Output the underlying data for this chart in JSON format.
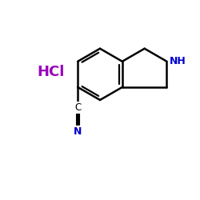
{
  "background_color": "#ffffff",
  "bond_color": "#000000",
  "nh_color": "#0000cc",
  "n_color": "#0000cc",
  "hcl_color": "#9900bb",
  "hcl_text": "HCl",
  "nh_text": "NH",
  "n_text": "N",
  "c_text": "C",
  "figsize": [
    2.5,
    2.5
  ],
  "dpi": 100,
  "xlim": [
    0,
    10
  ],
  "ylim": [
    0,
    10
  ]
}
